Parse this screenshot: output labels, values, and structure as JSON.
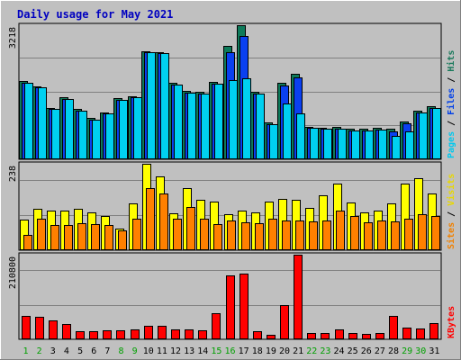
{
  "chart_data": {
    "type": "bar",
    "title": "Daily usage for May 2021",
    "days": [
      "1",
      "2",
      "3",
      "4",
      "5",
      "6",
      "7",
      "8",
      "9",
      "10",
      "11",
      "12",
      "13",
      "14",
      "15",
      "16",
      "17",
      "18",
      "19",
      "20",
      "21",
      "22",
      "23",
      "24",
      "25",
      "26",
      "27",
      "28",
      "29",
      "30",
      "31"
    ],
    "weekend_days": [
      "1",
      "2",
      "8",
      "9",
      "15",
      "16",
      "22",
      "23",
      "29",
      "30"
    ],
    "panels": [
      {
        "id": "top",
        "max_label": "3218",
        "max": 3218,
        "legend": [
          {
            "text": "Pages",
            "color": "#00c8ee"
          },
          {
            "text": "Files",
            "color": "#0040e8"
          },
          {
            "text": "Hits",
            "color": "#1a7a5c"
          }
        ],
        "series": [
          {
            "name": "Hits",
            "color": "#0e7a5a",
            "values": [
              1880,
              1760,
              1240,
              1480,
              1200,
              1000,
              1120,
              1460,
              1520,
              2600,
              2580,
              1840,
              1640,
              1620,
              1860,
              2720,
              3218,
              1620,
              880,
              1840,
              2060,
              780,
              760,
              780,
              740,
              740,
              760,
              740,
              900,
              1160,
              1280
            ]
          },
          {
            "name": "Files",
            "color": "#0a40f0",
            "values": [
              1840,
              1720,
              1200,
              1440,
              1160,
              960,
              1100,
              1420,
              1480,
              2560,
              2540,
              1800,
              1600,
              1580,
              1820,
              2580,
              2960,
              1580,
              840,
              1780,
              1960,
              760,
              740,
              740,
              700,
              700,
              720,
              660,
              860,
              1120,
              1240
            ]
          },
          {
            "name": "Pages",
            "color": "#00d0f0",
            "values": [
              1840,
              1720,
              1200,
              1440,
              1160,
              960,
              1100,
              1420,
              1480,
              2560,
              2540,
              1800,
              1600,
              1580,
              1820,
              1900,
              1940,
              1580,
              840,
              1340,
              1100,
              760,
              740,
              740,
              700,
              700,
              720,
              560,
              660,
              1120,
              1240
            ]
          }
        ]
      },
      {
        "id": "middle",
        "max_label": "238",
        "max": 238,
        "legend": [
          {
            "text": "Sites",
            "color": "#f08000"
          },
          {
            "text": "Visits",
            "color": "#e8d800"
          }
        ],
        "series": [
          {
            "name": "Visits",
            "color": "#ffff00",
            "values": [
              85,
              115,
              110,
              110,
              115,
              105,
              95,
              60,
              130,
              238,
              203,
              102,
              170,
              140,
              135,
              100,
              108,
              104,
              135,
              141,
              138,
              116,
              150,
              184,
              132,
              104,
              109,
              128,
              184,
              198,
              157
            ]
          },
          {
            "name": "Sites",
            "color": "#ff8000",
            "values": [
              42,
              88,
              70,
              70,
              75,
              72,
              70,
              55,
              88,
              170,
              157,
              86,
              120,
              86,
              73,
              82,
              78,
              74,
              88,
              82,
              82,
              80,
              82,
              108,
              95,
              76,
              82,
              79,
              87,
              100,
              95
            ]
          }
        ]
      },
      {
        "id": "bottom",
        "max_label": "210800",
        "max": 210800,
        "legend": [
          {
            "text": "KBytes",
            "color": "#ff0000"
          }
        ],
        "series": [
          {
            "name": "KBytes",
            "color": "#ff0000",
            "values": [
              58000,
              55000,
              46000,
              38000,
              20000,
              20000,
              22000,
              23000,
              24000,
              33000,
              33000,
              24000,
              24000,
              23000,
              66000,
              160000,
              163000,
              21000,
              12000,
              85000,
              210800,
              15000,
              15000,
              24000,
              15000,
              14000,
              16000,
              59000,
              29000,
              27000,
              40000
            ]
          }
        ]
      }
    ]
  }
}
